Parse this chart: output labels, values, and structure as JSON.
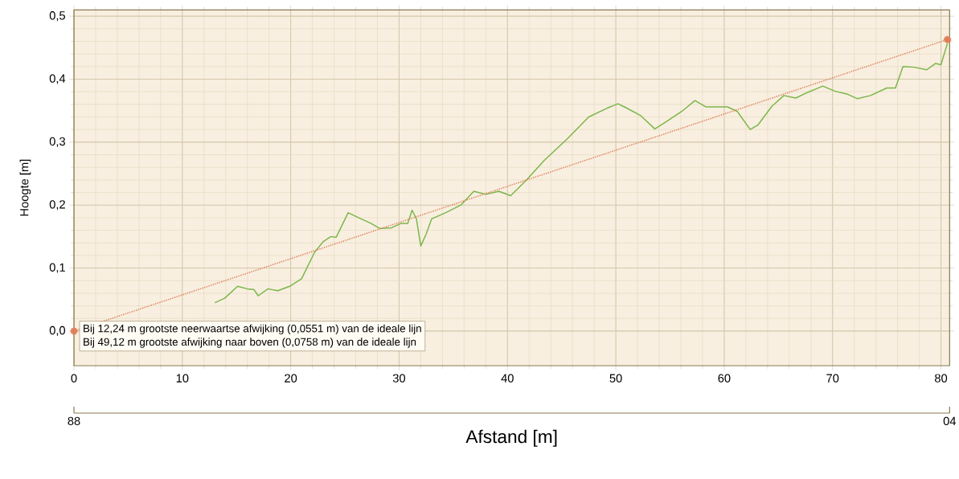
{
  "chart_data": {
    "type": "line",
    "xlabel": "Afstand [m]",
    "ylabel": "Hoogte [m]",
    "xlim": [
      0,
      80.8
    ],
    "ylim": [
      -0.055,
      0.51
    ],
    "xticks": [
      0,
      10,
      20,
      30,
      40,
      50,
      60,
      70,
      80
    ],
    "yticks": [
      {
        "value": 0,
        "label": "0,0"
      },
      {
        "value": 0.1,
        "label": "0,1"
      },
      {
        "value": 0.2,
        "label": "0,2"
      },
      {
        "value": 0.3,
        "label": "0,3"
      },
      {
        "value": 0.4,
        "label": "0,4"
      },
      {
        "value": 0.5,
        "label": "0,5"
      }
    ],
    "grid": true,
    "series": [
      {
        "color": "#7ab648",
        "line_style": "solid",
        "marker": "none",
        "x": [
          13.0,
          13.9,
          15.1,
          16.0,
          16.6,
          17.0,
          17.9,
          18.8,
          19.9,
          21.0,
          22.2,
          23.0,
          23.7,
          24.2,
          25.3,
          26.5,
          27.4,
          28.2,
          29.3,
          30.2,
          30.8,
          31.2,
          31.6,
          32.0,
          32.5,
          33.0,
          34.3,
          35.7,
          36.9,
          38.0,
          39.2,
          40.3,
          41.7,
          43.4,
          45.5,
          47.5,
          49.2,
          50.2,
          50.9,
          52.3,
          53.6,
          54.6,
          56.1,
          57.3,
          58.3,
          59.5,
          60.3,
          61.2,
          62.4,
          63.1,
          64.4,
          65.5,
          66.6,
          67.7,
          69.1,
          70.2,
          71.4,
          72.3,
          73.5,
          75.0,
          75.8,
          76.5,
          77.5,
          78.7,
          79.5,
          80.0,
          80.6
        ],
        "values": [
          0.045,
          0.052,
          0.071,
          0.067,
          0.066,
          0.056,
          0.067,
          0.064,
          0.071,
          0.083,
          0.125,
          0.142,
          0.15,
          0.149,
          0.188,
          0.178,
          0.171,
          0.163,
          0.164,
          0.171,
          0.171,
          0.192,
          0.178,
          0.135,
          0.154,
          0.178,
          0.188,
          0.2,
          0.222,
          0.217,
          0.222,
          0.215,
          0.239,
          0.271,
          0.305,
          0.34,
          0.354,
          0.361,
          0.355,
          0.342,
          0.321,
          0.332,
          0.349,
          0.366,
          0.356,
          0.356,
          0.356,
          0.349,
          0.32,
          0.327,
          0.357,
          0.374,
          0.37,
          0.379,
          0.389,
          0.381,
          0.376,
          0.369,
          0.374,
          0.386,
          0.386,
          0.42,
          0.419,
          0.415,
          0.425,
          0.423,
          0.457
        ]
      },
      {
        "color": "#e0805a",
        "line_style": "dotted",
        "marker": "circle",
        "x": [
          0,
          80.6
        ],
        "values": [
          0,
          0.463
        ]
      }
    ],
    "annotations": [
      "Bij 12,24 m grootste neerwaartse afwijking (0,0551 m) van de ideale lijn",
      "Bij 49,12 m grootste afwijking naar boven (0,0758 m) van de ideale lijn",
      "88",
      "04"
    ]
  }
}
